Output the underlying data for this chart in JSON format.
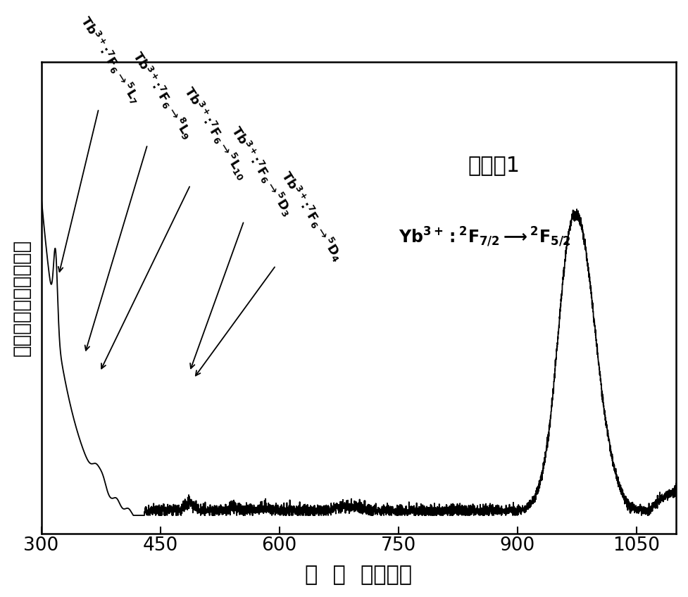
{
  "xlim": [
    300,
    1100
  ],
  "ylim": [
    0.0,
    1.05
  ],
  "xticks": [
    300,
    450,
    600,
    750,
    900,
    1050
  ],
  "background_color": "#ffffff",
  "line_color": "#000000"
}
